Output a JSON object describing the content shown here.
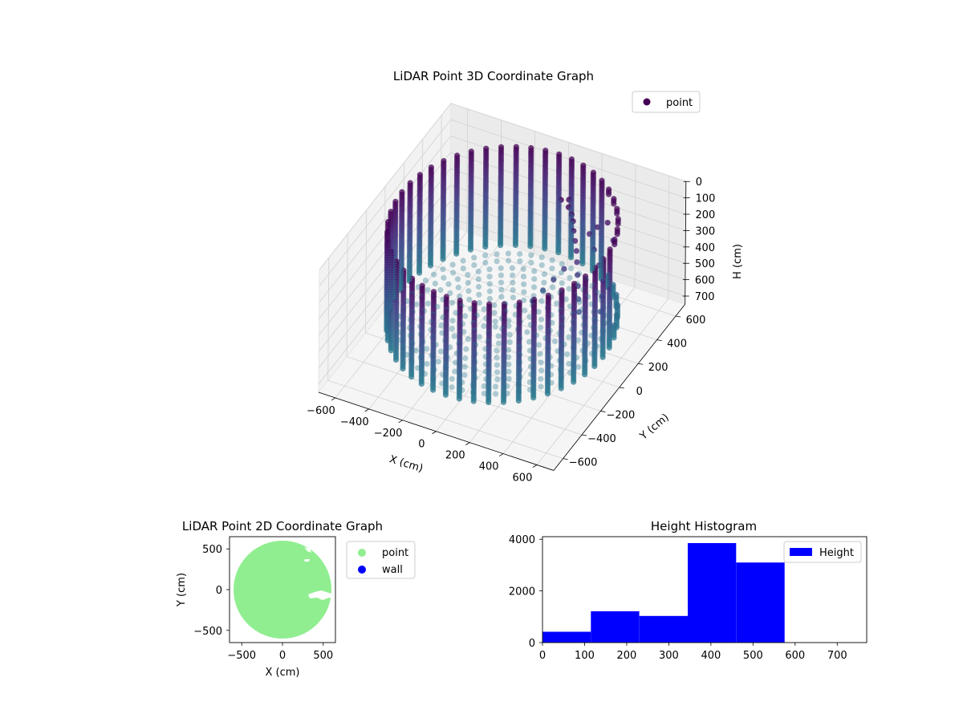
{
  "chart_data": [
    {
      "type": "scatter",
      "title": "LiDAR Point 3D Coordinate Graph",
      "xlabel": "X (cm)",
      "ylabel": "Y (cm)",
      "zlabel": "H (cm)",
      "xlim": [
        -700,
        700
      ],
      "ylim": [
        -700,
        700
      ],
      "zlim": [
        750,
        0
      ],
      "x_ticks": [
        -600,
        -400,
        -200,
        0,
        200,
        400,
        600
      ],
      "y_ticks": [
        -600,
        -400,
        -200,
        0,
        200,
        400,
        600
      ],
      "z_ticks": [
        0,
        100,
        200,
        300,
        400,
        500,
        600,
        700
      ],
      "legend": {
        "position": "top-right",
        "entries": [
          "point"
        ]
      },
      "grid": true,
      "colormap": "viridis",
      "series": [
        {
          "name": "point",
          "description_of_structure": "cylindrical wall of radius ~600 cm sampled every ~7.5 degrees, heights 0-600 cm; plus floor disk and an inner object cluster",
          "wall_radius": 600,
          "wall_height_range": [
            0,
            600
          ],
          "floor_height": 600,
          "cluster_points": [
            [
              180,
              300,
              0
            ],
            [
              230,
              290,
              20
            ],
            [
              260,
              270,
              40
            ],
            [
              210,
              330,
              10
            ],
            [
              280,
              250,
              60
            ],
            [
              300,
              220,
              90
            ],
            [
              320,
              200,
              130
            ],
            [
              340,
              180,
              170
            ],
            [
              360,
              150,
              210
            ],
            [
              380,
              120,
              260
            ],
            [
              400,
              90,
              300
            ],
            [
              420,
              60,
              350
            ],
            [
              440,
              30,
              400
            ],
            [
              300,
              120,
              250
            ],
            [
              260,
              80,
              300
            ],
            [
              220,
              40,
              350
            ],
            [
              180,
              0,
              400
            ],
            [
              350,
              300,
              150
            ],
            [
              400,
              260,
              200
            ],
            [
              450,
              220,
              250
            ],
            [
              500,
              180,
              300
            ],
            [
              520,
              130,
              350
            ],
            [
              540,
              80,
              400
            ],
            [
              380,
              330,
              120
            ],
            [
              430,
              350,
              90
            ],
            [
              480,
              320,
              160
            ]
          ]
        }
      ]
    },
    {
      "type": "scatter",
      "title": "LiDAR Point 2D Coordinate Graph",
      "xlabel": "X (cm)",
      "ylabel": "Y (cm)",
      "xlim": [
        -650,
        650
      ],
      "ylim": [
        -650,
        650
      ],
      "x_ticks": [
        -500,
        0,
        500
      ],
      "y_ticks": [
        -500,
        0,
        500
      ],
      "legend": {
        "position": "outside-right",
        "entries": [
          "point",
          "wall"
        ]
      },
      "series": [
        {
          "name": "point",
          "color": "#90ee90",
          "shape": "filled disk radius ~620 cm with small gaps on the right side"
        },
        {
          "name": "wall",
          "color": "#0000ff",
          "values": []
        }
      ]
    },
    {
      "type": "bar",
      "title": "Height Histogram",
      "xlim": [
        0,
        770
      ],
      "ylim": [
        0,
        4100
      ],
      "x_ticks": [
        0,
        100,
        200,
        300,
        400,
        500,
        600,
        700
      ],
      "y_ticks": [
        0,
        2000,
        4000
      ],
      "legend": {
        "position": "top-right",
        "entries": [
          "Height"
        ]
      },
      "series": [
        {
          "name": "Height",
          "color": "#0000ff",
          "bin_edges": [
            0,
            115,
            230,
            345,
            460,
            575,
            690
          ],
          "values": [
            420,
            1210,
            1030,
            3850,
            3100,
            0
          ]
        }
      ]
    }
  ],
  "colors": {
    "point_2d": "#90ee90",
    "wall": "#0000ff",
    "histogram": "#0000ff"
  }
}
